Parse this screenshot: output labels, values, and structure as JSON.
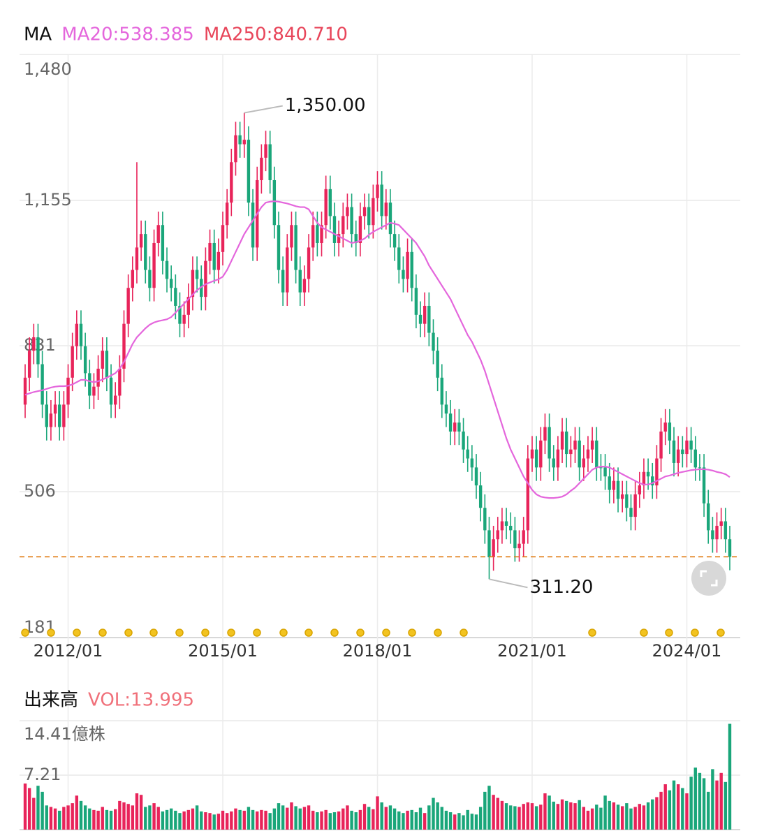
{
  "chart_data": [
    {
      "type": "candlestick",
      "title": "MA",
      "up_color": "#e8245a",
      "down_color": "#1aa67a",
      "categories": [
        null,
        null,
        null,
        null,
        null,
        null,
        null,
        null,
        null,
        null,
        "2012/01",
        null,
        null,
        null,
        null,
        null,
        null,
        null,
        null,
        null,
        null,
        null,
        null,
        null,
        null,
        null,
        null,
        null,
        null,
        null,
        null,
        null,
        null,
        null,
        null,
        null,
        null,
        null,
        null,
        null,
        null,
        null,
        null,
        null,
        null,
        null,
        "2015/01",
        null,
        null,
        null,
        null,
        null,
        null,
        null,
        null,
        null,
        null,
        null,
        null,
        null,
        null,
        null,
        null,
        null,
        null,
        null,
        null,
        null,
        null,
        null,
        null,
        null,
        null,
        null,
        null,
        null,
        null,
        null,
        null,
        null,
        null,
        null,
        "2018/01",
        null,
        null,
        null,
        null,
        null,
        null,
        null,
        null,
        null,
        null,
        null,
        null,
        null,
        null,
        null,
        null,
        null,
        null,
        null,
        null,
        null,
        null,
        null,
        null,
        null,
        null,
        null,
        null,
        null,
        null,
        null,
        null,
        null,
        null,
        null,
        "2021/01",
        null,
        null,
        null,
        null,
        null,
        null,
        null,
        null,
        null,
        null,
        null,
        null,
        null,
        null,
        null,
        null,
        null,
        null,
        null,
        null,
        null,
        null,
        null,
        null,
        null,
        null,
        null,
        null,
        null,
        null,
        null,
        null,
        null,
        null,
        null,
        "2024/01",
        null,
        null,
        null,
        null,
        null,
        null,
        null,
        null,
        null,
        null
      ],
      "open": [
        700,
        760,
        820,
        850,
        790,
        700,
        650,
        680,
        700,
        650,
        700,
        760,
        830,
        880,
        830,
        770,
        720,
        740,
        780,
        820,
        760,
        700,
        720,
        780,
        880,
        960,
        1000,
        1050,
        1080,
        1000,
        960,
        1060,
        1100,
        1020,
        980,
        960,
        920,
        880,
        900,
        940,
        1000,
        980,
        940,
        1020,
        1060,
        1000,
        1040,
        1100,
        1150,
        1240,
        1300,
        1280,
        1290,
        1150,
        1050,
        1200,
        1250,
        1280,
        1200,
        1100,
        1000,
        950,
        1050,
        1100,
        1000,
        950,
        980,
        1050,
        1100,
        1060,
        1100,
        1180,
        1120,
        1060,
        1080,
        1120,
        1140,
        1080,
        1060,
        1120,
        1140,
        1100,
        1160,
        1190,
        1120,
        1150,
        1080,
        1050,
        1000,
        980,
        1040,
        960,
        900,
        880,
        920,
        860,
        820,
        760,
        700,
        680,
        640,
        660,
        640,
        600,
        580,
        560,
        520,
        470,
        420,
        360,
        400,
        420,
        440,
        430,
        420,
        380,
        390,
        420,
        580,
        600,
        560,
        620,
        650,
        580,
        560,
        600,
        640,
        590,
        600,
        620,
        560,
        580,
        600,
        620,
        560,
        560,
        540,
        510,
        530,
        490,
        500,
        470,
        450,
        500,
        520,
        550,
        540,
        520,
        580,
        640,
        660,
        620,
        570,
        600,
        590,
        620,
        600,
        560,
        560,
        480,
        420,
        400,
        430,
        440,
        400
      ],
      "high": [
        790,
        850,
        880,
        880,
        820,
        730,
        710,
        730,
        730,
        730,
        790,
        860,
        910,
        910,
        860,
        800,
        770,
        810,
        850,
        850,
        790,
        750,
        810,
        910,
        990,
        1030,
        1240,
        1110,
        1110,
        1030,
        1090,
        1130,
        1130,
        1050,
        1010,
        990,
        950,
        930,
        970,
        1030,
        1030,
        1010,
        1050,
        1090,
        1090,
        1070,
        1130,
        1180,
        1270,
        1330,
        1330,
        1350,
        1320,
        1180,
        1230,
        1280,
        1310,
        1310,
        1230,
        1130,
        1030,
        1080,
        1130,
        1130,
        1030,
        1010,
        1080,
        1130,
        1130,
        1130,
        1210,
        1210,
        1150,
        1110,
        1150,
        1170,
        1170,
        1110,
        1150,
        1170,
        1170,
        1190,
        1220,
        1220,
        1180,
        1180,
        1110,
        1080,
        1030,
        1070,
        1070,
        990,
        930,
        950,
        950,
        890,
        850,
        790,
        730,
        710,
        690,
        690,
        670,
        630,
        610,
        590,
        550,
        500,
        450,
        430,
        450,
        470,
        470,
        460,
        450,
        420,
        450,
        610,
        630,
        630,
        650,
        680,
        680,
        610,
        630,
        670,
        670,
        630,
        650,
        650,
        610,
        630,
        650,
        650,
        590,
        590,
        570,
        560,
        560,
        530,
        530,
        500,
        530,
        550,
        580,
        580,
        570,
        610,
        670,
        690,
        690,
        650,
        630,
        630,
        650,
        650,
        630,
        590,
        590,
        510,
        450,
        460,
        470,
        470,
        430
      ],
      "low": [
        670,
        730,
        790,
        760,
        670,
        620,
        620,
        650,
        620,
        620,
        670,
        730,
        800,
        800,
        740,
        690,
        690,
        710,
        750,
        730,
        670,
        670,
        690,
        750,
        850,
        930,
        970,
        1020,
        970,
        930,
        930,
        1030,
        990,
        950,
        930,
        890,
        850,
        850,
        870,
        910,
        950,
        910,
        910,
        990,
        970,
        970,
        1010,
        1070,
        1120,
        1210,
        1250,
        1250,
        1120,
        1020,
        1020,
        1170,
        1220,
        1170,
        1070,
        970,
        920,
        920,
        1020,
        970,
        920,
        920,
        950,
        1020,
        1030,
        1030,
        1070,
        1090,
        1030,
        1030,
        1050,
        1090,
        1050,
        1030,
        1030,
        1090,
        1070,
        1070,
        1130,
        1090,
        1090,
        1050,
        1020,
        970,
        950,
        950,
        930,
        870,
        850,
        850,
        830,
        790,
        730,
        670,
        650,
        610,
        610,
        610,
        570,
        550,
        530,
        490,
        440,
        390,
        311.2,
        330,
        370,
        390,
        400,
        390,
        350,
        350,
        360,
        390,
        550,
        530,
        530,
        590,
        550,
        530,
        530,
        570,
        560,
        560,
        570,
        530,
        530,
        550,
        570,
        530,
        530,
        510,
        480,
        480,
        460,
        460,
        440,
        420,
        420,
        470,
        490,
        510,
        490,
        490,
        550,
        610,
        590,
        540,
        540,
        560,
        560,
        570,
        530,
        530,
        450,
        390,
        370,
        370,
        400,
        370,
        331
      ],
      "close": [
        760,
        820,
        850,
        790,
        700,
        650,
        680,
        700,
        650,
        700,
        760,
        830,
        880,
        830,
        770,
        720,
        740,
        780,
        820,
        760,
        700,
        720,
        780,
        880,
        960,
        1000,
        1050,
        1080,
        1000,
        960,
        1060,
        1100,
        1020,
        980,
        960,
        920,
        880,
        900,
        940,
        1000,
        980,
        940,
        1020,
        1060,
        1000,
        1040,
        1100,
        1150,
        1240,
        1300,
        1280,
        1290,
        1150,
        1050,
        1200,
        1250,
        1280,
        1200,
        1100,
        1000,
        950,
        1050,
        1100,
        1000,
        950,
        980,
        1050,
        1100,
        1060,
        1100,
        1180,
        1120,
        1060,
        1080,
        1120,
        1140,
        1080,
        1060,
        1120,
        1140,
        1100,
        1160,
        1190,
        1120,
        1150,
        1080,
        1050,
        1000,
        980,
        1040,
        960,
        900,
        880,
        920,
        860,
        820,
        760,
        700,
        680,
        640,
        660,
        640,
        600,
        580,
        560,
        520,
        470,
        420,
        360,
        400,
        420,
        440,
        430,
        420,
        380,
        390,
        420,
        580,
        600,
        560,
        620,
        650,
        580,
        560,
        600,
        640,
        590,
        600,
        620,
        560,
        580,
        600,
        620,
        560,
        560,
        540,
        510,
        530,
        490,
        500,
        470,
        450,
        500,
        520,
        550,
        540,
        520,
        580,
        640,
        660,
        620,
        570,
        600,
        590,
        620,
        600,
        560,
        560,
        480,
        420,
        400,
        430,
        440,
        400,
        361
      ],
      "series": [
        {
          "name": "MA20:538.385",
          "color": "#e466dc",
          "values": [
            722,
            725,
            728,
            730,
            732,
            735,
            738,
            740,
            741,
            741,
            742,
            745,
            750,
            755,
            755,
            752,
            750,
            752,
            756,
            760,
            765,
            770,
            780,
            795,
            815,
            835,
            850,
            860,
            870,
            878,
            883,
            886,
            888,
            890,
            895,
            905,
            915,
            925,
            935,
            945,
            955,
            962,
            968,
            972,
            976,
            979,
            985,
            1000,
            1020,
            1040,
            1060,
            1080,
            1095,
            1110,
            1125,
            1140,
            1150,
            1152,
            1153,
            1152,
            1150,
            1148,
            1145,
            1142,
            1140,
            1140,
            1135,
            1120,
            1105,
            1095,
            1090,
            1085,
            1080,
            1075,
            1070,
            1065,
            1060,
            1062,
            1065,
            1070,
            1078,
            1085,
            1090,
            1095,
            1100,
            1105,
            1103,
            1100,
            1090,
            1080,
            1070,
            1060,
            1045,
            1030,
            1010,
            995,
            980,
            965,
            950,
            935,
            915,
            895,
            875,
            855,
            840,
            820,
            800,
            775,
            745,
            715,
            685,
            655,
            625,
            600,
            580,
            560,
            540,
            525,
            510,
            500,
            495,
            493,
            492,
            492,
            493,
            495,
            500,
            508,
            515,
            525,
            535,
            545,
            555,
            560,
            562,
            562,
            560,
            555,
            550,
            545,
            540,
            535,
            530,
            525,
            522,
            522,
            525,
            530,
            535,
            540,
            542,
            545,
            548,
            550,
            552,
            554,
            555,
            556,
            556,
            555,
            553,
            550,
            548,
            545,
            538.385
          ]
        }
      ],
      "extra_legend": [
        {
          "name": "MA250:840.710",
          "color": "#e8455a"
        }
      ],
      "annotations": [
        {
          "value": 1350,
          "label": "1,350.00",
          "of": "high"
        },
        {
          "value": 311.2,
          "label": "311.20",
          "of": "low"
        }
      ],
      "reference_line": {
        "value": 361,
        "color": "#e07a10"
      },
      "ylim": [
        181,
        1480
      ],
      "yticks": [
        {
          "value": 1480,
          "label": "1,480"
        },
        {
          "value": 1155,
          "label": "1,155"
        },
        831,
        506,
        181
      ],
      "grid": true
    },
    {
      "type": "bar",
      "title": "出来高",
      "subtitle": "VOL:13.995",
      "subtitle_color": "#f0707a",
      "values": [
        6.1,
        5.5,
        4.2,
        5.8,
        5.0,
        3.2,
        3.0,
        2.8,
        2.5,
        3.0,
        3.2,
        3.5,
        4.5,
        3.8,
        3.2,
        2.8,
        2.6,
        2.5,
        3.0,
        2.6,
        2.5,
        2.7,
        3.8,
        3.6,
        3.4,
        3.2,
        4.8,
        4.6,
        3.0,
        3.2,
        3.5,
        3.0,
        2.4,
        2.6,
        2.8,
        2.5,
        2.2,
        2.4,
        2.6,
        2.8,
        3.2,
        2.4,
        2.3,
        2.2,
        2.0,
        2.1,
        2.5,
        2.2,
        2.4,
        2.8,
        2.6,
        2.5,
        3.0,
        2.6,
        2.4,
        2.6,
        2.5,
        2.2,
        2.8,
        3.5,
        3.2,
        2.9,
        3.6,
        3.1,
        2.8,
        3.0,
        3.2,
        2.5,
        2.3,
        2.4,
        2.6,
        2.2,
        2.3,
        2.4,
        2.8,
        3.2,
        2.5,
        2.3,
        2.6,
        3.4,
        3.0,
        2.7,
        4.4,
        3.6,
        3.0,
        3.2,
        2.8,
        2.4,
        2.2,
        2.5,
        2.6,
        2.3,
        2.9,
        2.2,
        3.2,
        4.2,
        3.6,
        3.0,
        2.5,
        2.3,
        2.0,
        2.2,
        1.9,
        2.6,
        2.1,
        2.0,
        3.0,
        5.0,
        5.8,
        4.6,
        4.2,
        3.8,
        3.5,
        3.2,
        3.1,
        3.0,
        3.4,
        3.6,
        3.5,
        3.1,
        3.3,
        4.8,
        4.5,
        3.7,
        3.4,
        4.0,
        3.8,
        3.6,
        3.5,
        3.9,
        3.0,
        2.5,
        2.8,
        3.3,
        2.9,
        4.5,
        3.8,
        3.6,
        3.3,
        3.1,
        3.5,
        2.8,
        3.0,
        3.4,
        3.2,
        3.6,
        4.0,
        4.3,
        5.0,
        6.0,
        5.2,
        6.5,
        6.0,
        5.5,
        4.8,
        7.0,
        8.2,
        7.5,
        6.8,
        5.0,
        8.0,
        6.5,
        7.5,
        6.3,
        13.995
      ],
      "ylim": [
        0,
        14.41
      ],
      "yticks": [
        {
          "value": 14.41,
          "label": "14.41億株"
        },
        7.21
      ],
      "grid": true
    }
  ]
}
